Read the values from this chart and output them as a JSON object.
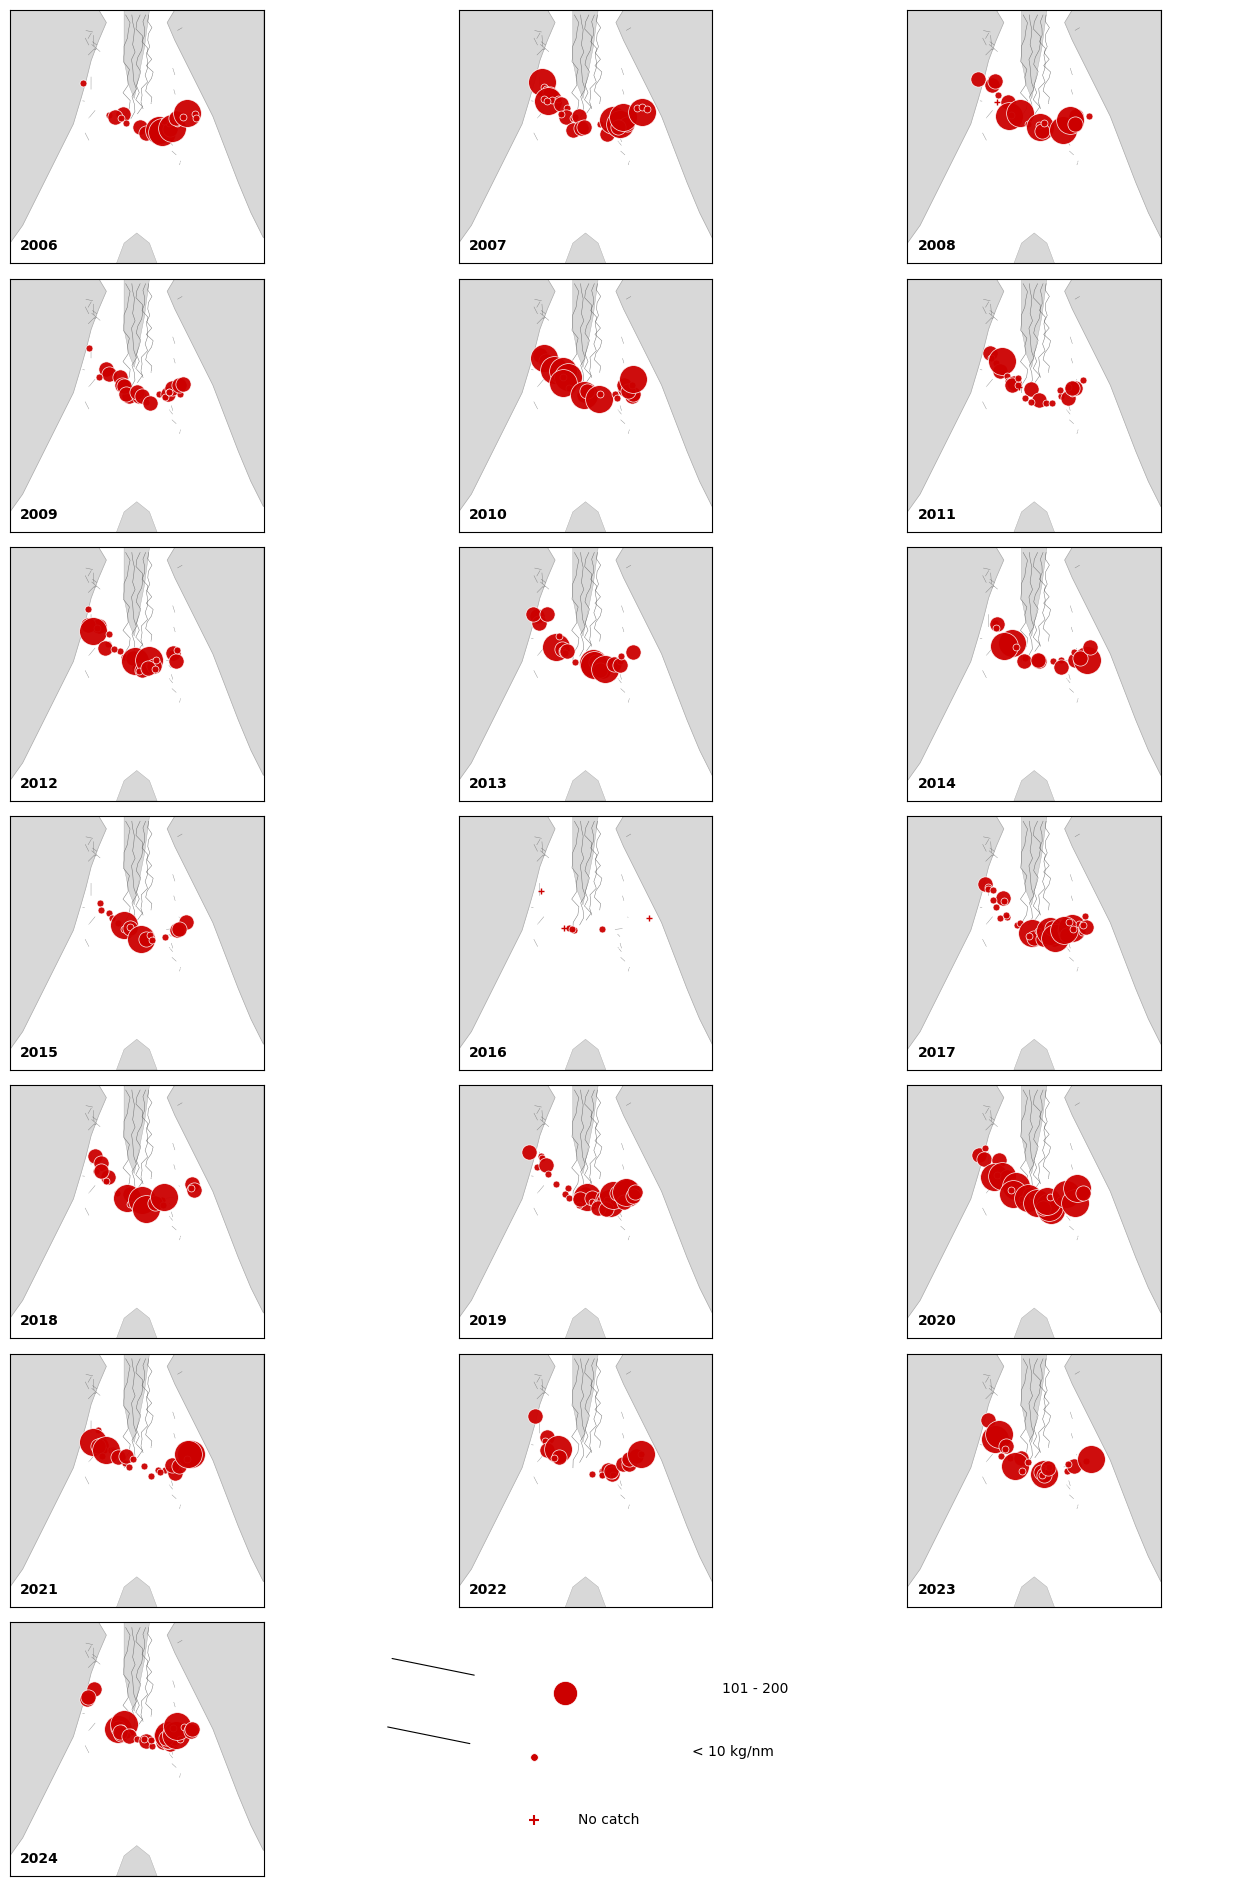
{
  "years": [
    2006,
    2007,
    2008,
    2009,
    2010,
    2011,
    2012,
    2013,
    2014,
    2015,
    2016,
    2017,
    2018,
    2019,
    2020,
    2021,
    2022,
    2023,
    2024
  ],
  "background_color": "#ffffff",
  "land_color": "#d8d8d8",
  "sea_color": "#ffffff",
  "bubble_color": "#cc0000",
  "bubble_edge_color": "#ffffff",
  "cross_color": "#cc0000",
  "year_label_fontsize": 10,
  "legend_fontsize": 10,
  "bubble_sizes": {
    "large": 400,
    "medium": 120,
    "small": 25
  },
  "legend_bubble_large": 300,
  "legend_bubble_small": 30,
  "subplot_border_color": "#000000",
  "grid_line_color": "#ffffff",
  "coast_line_color": "#555555",
  "legend_labels": [
    "101 - 200",
    "< 10 kg/nm",
    "No catch"
  ]
}
